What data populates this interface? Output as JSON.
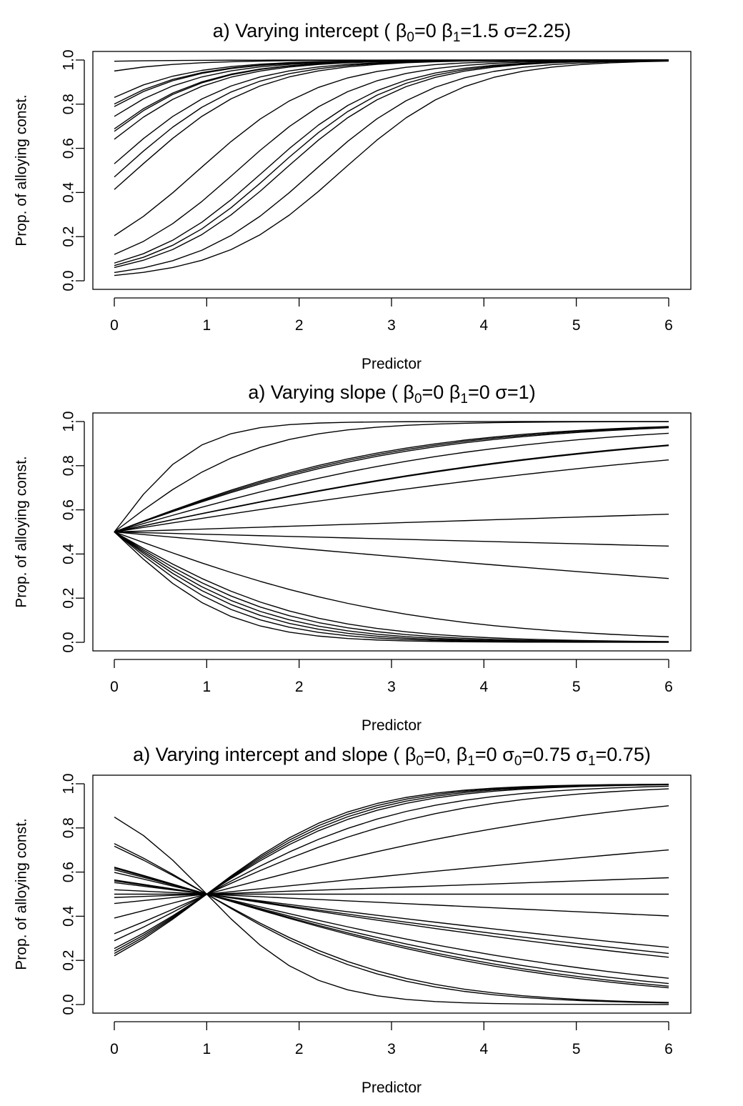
{
  "chart_data": [
    {
      "type": "line",
      "title": {
        "prefix": "a) Varying intercept ( ",
        "parts": [
          {
            "sym": "β",
            "sub": "0",
            "rest": "=0 "
          },
          {
            "sym": "β",
            "sub": "1",
            "rest": "=1.5 "
          },
          {
            "sym": "σ",
            "sub": "",
            "rest": "=2.25)"
          }
        ]
      },
      "xlabel": "Predictor",
      "ylabel": "Prop. of alloying const.",
      "xlim": [
        0,
        6
      ],
      "ylim": [
        0,
        1
      ],
      "xticks": [
        "0",
        "1",
        "2",
        "3",
        "4",
        "5",
        "6"
      ],
      "yticks": [
        "0.0",
        "0.2",
        "0.4",
        "0.6",
        "0.8",
        "1.0"
      ],
      "grid": false,
      "model": {
        "intercept_base": 0,
        "slope_base": 1.5
      },
      "series": [
        {
          "intercept": 5.2,
          "slope": 1.5
        },
        {
          "intercept": 2.95,
          "slope": 1.5
        },
        {
          "intercept": 1.59,
          "slope": 1.5
        },
        {
          "intercept": 1.39,
          "slope": 1.5
        },
        {
          "intercept": 1.32,
          "slope": 1.5
        },
        {
          "intercept": 1.07,
          "slope": 1.5
        },
        {
          "intercept": 0.79,
          "slope": 1.5
        },
        {
          "intercept": 0.74,
          "slope": 1.5
        },
        {
          "intercept": 0.58,
          "slope": 1.5
        },
        {
          "intercept": 0.12,
          "slope": 1.5
        },
        {
          "intercept": -0.12,
          "slope": 1.5
        },
        {
          "intercept": -0.35,
          "slope": 1.5
        },
        {
          "intercept": -1.36,
          "slope": 1.5
        },
        {
          "intercept": -2.0,
          "slope": 1.5
        },
        {
          "intercept": -2.44,
          "slope": 1.5
        },
        {
          "intercept": -2.6,
          "slope": 1.5
        },
        {
          "intercept": -2.75,
          "slope": 1.5
        },
        {
          "intercept": -3.25,
          "slope": 1.5
        },
        {
          "intercept": -3.7,
          "slope": 1.5
        }
      ]
    },
    {
      "type": "line",
      "title": {
        "prefix": "a) Varying slope ( ",
        "parts": [
          {
            "sym": "β",
            "sub": "0",
            "rest": "=0 "
          },
          {
            "sym": "β",
            "sub": "1",
            "rest": "=0 "
          },
          {
            "sym": "σ",
            "sub": "",
            "rest": "=1)"
          }
        ]
      },
      "xlabel": "Predictor",
      "ylabel": "Prop. of alloying const.",
      "xlim": [
        0,
        6
      ],
      "ylim": [
        0,
        1
      ],
      "xticks": [
        "0",
        "1",
        "2",
        "3",
        "4",
        "5",
        "6"
      ],
      "yticks": [
        "0.0",
        "0.2",
        "0.4",
        "0.6",
        "0.8",
        "1.0"
      ],
      "grid": false,
      "model": {
        "intercept_base": 0,
        "slope_base": 0
      },
      "series": [
        {
          "intercept": 0,
          "slope": 2.25
        },
        {
          "intercept": 0,
          "slope": 1.28
        },
        {
          "intercept": 0,
          "slope": 0.63
        },
        {
          "intercept": 0,
          "slope": 0.61
        },
        {
          "intercept": 0,
          "slope": 0.59
        },
        {
          "intercept": 0,
          "slope": 0.48
        },
        {
          "intercept": 0,
          "slope": 0.355
        },
        {
          "intercept": 0,
          "slope": 0.35
        },
        {
          "intercept": 0,
          "slope": 0.26
        },
        {
          "intercept": 0,
          "slope": 0.054
        },
        {
          "intercept": 0,
          "slope": -0.043
        },
        {
          "intercept": 0,
          "slope": -0.15
        },
        {
          "intercept": 0,
          "slope": -0.61
        },
        {
          "intercept": 0,
          "slope": -0.95
        },
        {
          "intercept": 0,
          "slope": -1.05
        },
        {
          "intercept": 0,
          "slope": -1.15
        },
        {
          "intercept": 0,
          "slope": -1.25
        },
        {
          "intercept": 0,
          "slope": -1.38
        },
        {
          "intercept": 0,
          "slope": -1.6
        }
      ]
    },
    {
      "type": "line",
      "title": {
        "prefix": "a) Varying intercept and slope ( ",
        "parts": [
          {
            "sym": "β",
            "sub": "0",
            "rest": "=0, "
          },
          {
            "sym": "β",
            "sub": "1",
            "rest": "=0 "
          },
          {
            "sym": "σ",
            "sub": "0",
            "rest": "=0.75 "
          },
          {
            "sym": "σ",
            "sub": "1",
            "rest": "=0.75)"
          }
        ]
      },
      "xlabel": "Predictor",
      "ylabel": "Prop. of alloying const.",
      "xlim": [
        0,
        6
      ],
      "ylim": [
        0,
        1
      ],
      "xticks": [
        "0",
        "1",
        "2",
        "3",
        "4",
        "5",
        "6"
      ],
      "yticks": [
        "0.0",
        "0.2",
        "0.4",
        "0.6",
        "0.8",
        "1.0"
      ],
      "grid": false,
      "model": {
        "pivot_x": 1,
        "pivot_y": 0.5
      },
      "series": [
        {
          "intercept": -1.26,
          "slope": 1.26
        },
        {
          "intercept": -1.2,
          "slope": 1.2
        },
        {
          "intercept": -1.14,
          "slope": 1.14
        },
        {
          "intercept": -1.08,
          "slope": 1.08
        },
        {
          "intercept": -0.9,
          "slope": 0.9
        },
        {
          "intercept": -0.75,
          "slope": 0.75
        },
        {
          "intercept": -0.44,
          "slope": 0.44
        },
        {
          "intercept": -0.17,
          "slope": 0.17
        },
        {
          "intercept": -0.06,
          "slope": 0.06
        },
        {
          "intercept": 0.0,
          "slope": 0.0
        },
        {
          "intercept": 0.08,
          "slope": -0.08
        },
        {
          "intercept": 0.21,
          "slope": -0.21
        },
        {
          "intercept": 0.24,
          "slope": -0.24
        },
        {
          "intercept": 0.26,
          "slope": -0.26
        },
        {
          "intercept": 0.4,
          "slope": -0.4
        },
        {
          "intercept": 0.45,
          "slope": -0.45
        },
        {
          "intercept": 0.48,
          "slope": -0.48
        },
        {
          "intercept": 0.5,
          "slope": -0.5
        },
        {
          "intercept": 0.93,
          "slope": -0.93
        },
        {
          "intercept": 0.99,
          "slope": -0.99
        },
        {
          "intercept": 1.73,
          "slope": -1.73
        }
      ]
    }
  ]
}
